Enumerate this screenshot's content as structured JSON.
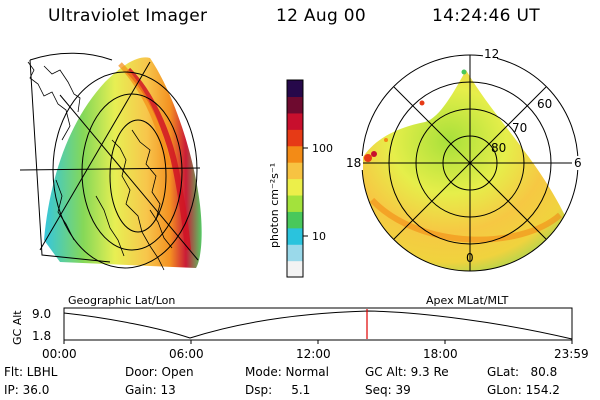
{
  "header": {
    "instrument": "Ultraviolet Imager",
    "date": "12 Aug 00",
    "time": "14:24:46 UT"
  },
  "colorbar": {
    "unit_label": "photon cm⁻²s⁻¹",
    "ticks": [
      "100",
      "10"
    ],
    "colors": [
      "#f3f3f3",
      "#9ad9ea",
      "#2ac3dd",
      "#49c85b",
      "#a3e23c",
      "#ecef4a",
      "#f7c342",
      "#f38b16",
      "#e63a16",
      "#c80f2d",
      "#6e0a2f",
      "#26084a"
    ]
  },
  "geo_panel": {
    "label": "Geographic Lat/Lon"
  },
  "polar_panel": {
    "label": "Apex MLat/MLT",
    "mlt_labels": {
      "top": "12",
      "left": "18",
      "right": "6",
      "bottom": "0"
    },
    "lat_labels": [
      "60",
      "70",
      "80"
    ]
  },
  "altitude_plot": {
    "ylabel": "GC Alt",
    "yticks": [
      "9.0",
      "1.8"
    ],
    "xticks": [
      "00:00",
      "06:00",
      "12:00",
      "18:00",
      "23:59"
    ],
    "current_time_marker": "14:24",
    "marker_color": "#e00000"
  },
  "footer": {
    "filter": "Flt: LBHL",
    "ip": "IP: 36.0",
    "door": "Door: Open",
    "gain": "Gain: 13",
    "mode": "Mode: Normal",
    "dsp": "Dsp:     5.1",
    "gc_alt": "GC Alt: 9.3 Re",
    "seq": "Seq: 39",
    "glat": "GLat:   80.8",
    "glon": "GLon: 154.2"
  }
}
